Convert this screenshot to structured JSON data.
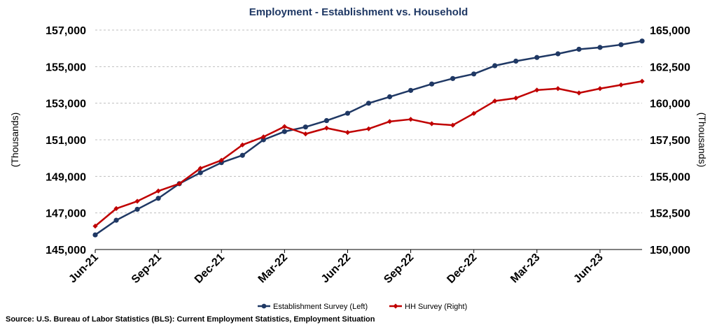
{
  "chart_data": {
    "type": "line",
    "title": "Employment - Establishment vs. Household",
    "ylabel": "(Thousands)",
    "y2label": "(Thousands)",
    "source": "Source: U.S. Bureau of Labor Statistics (BLS): Current Employment Statistics, Employment Situation",
    "ylim": [
      145000,
      157000
    ],
    "y2lim": [
      150000,
      165000
    ],
    "yticks": [
      "145,000",
      "147,000",
      "149,000",
      "151,000",
      "153,000",
      "155,000",
      "157,000"
    ],
    "y2ticks": [
      "150,000",
      "152,500",
      "155,000",
      "157,500",
      "160,000",
      "162,500",
      "165,000"
    ],
    "x_tick_labels": [
      "Jun-21",
      "Sep-21",
      "Dec-21",
      "Mar-22",
      "Jun-22",
      "Sep-22",
      "Dec-22",
      "Mar-23",
      "Jun-23"
    ],
    "x": [
      "Jun-21",
      "Jul-21",
      "Aug-21",
      "Sep-21",
      "Oct-21",
      "Nov-21",
      "Dec-21",
      "Jan-22",
      "Feb-22",
      "Mar-22",
      "Apr-22",
      "May-22",
      "Jun-22",
      "Jul-22",
      "Aug-22",
      "Sep-22",
      "Oct-22",
      "Nov-22",
      "Dec-22",
      "Jan-23",
      "Feb-23",
      "Mar-23",
      "Apr-23",
      "May-23",
      "Jun-23",
      "Jul-23",
      "Aug-23"
    ],
    "grid": true,
    "legend_position": "bottom",
    "series": [
      {
        "name": "Establishment Survey (Left)",
        "axis": "left",
        "color": "#1f3864",
        "marker": "circle",
        "values": [
          145800,
          146600,
          147200,
          147800,
          148600,
          149200,
          149750,
          150150,
          151000,
          151450,
          151700,
          152050,
          152450,
          153000,
          153350,
          153700,
          154050,
          154350,
          154600,
          155050,
          155300,
          155500,
          155700,
          155950,
          156050,
          156200,
          156400
        ]
      },
      {
        "name": "HH Survey (Right)",
        "axis": "right",
        "color": "#c00000",
        "marker": "diamond",
        "values": [
          151600,
          152800,
          153300,
          154000,
          154500,
          155550,
          156100,
          157150,
          157700,
          158400,
          157900,
          158300,
          158000,
          158250,
          158750,
          158900,
          158600,
          158500,
          159300,
          160150,
          160350,
          160900,
          161000,
          160700,
          161000,
          161250,
          161500
        ]
      }
    ]
  }
}
